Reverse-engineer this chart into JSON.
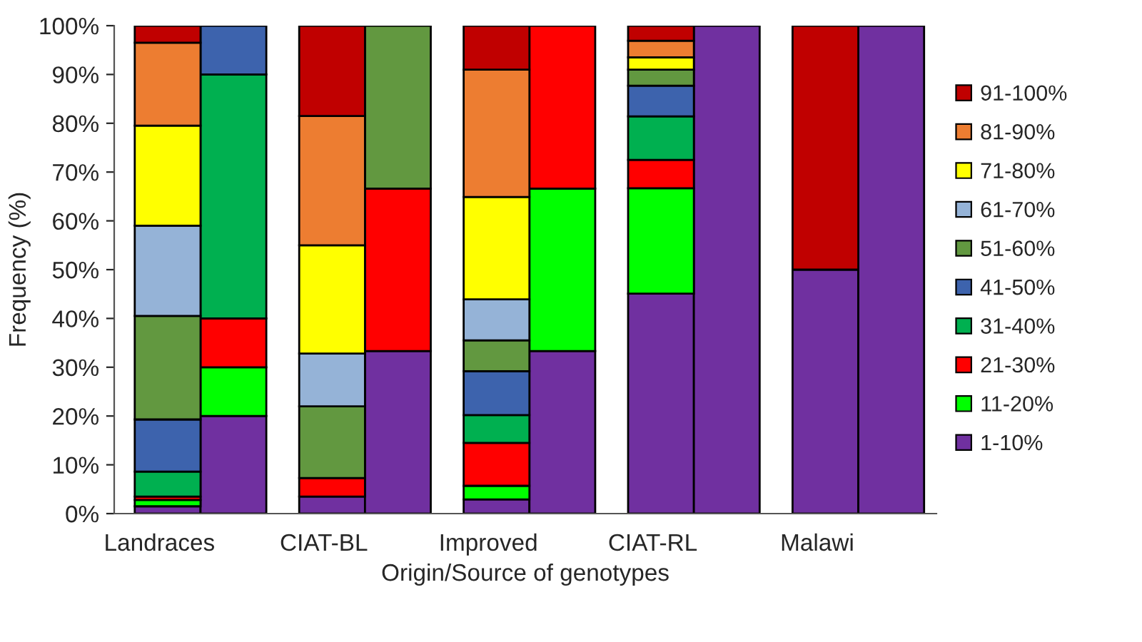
{
  "chart_data": {
    "type": "bar",
    "stacked": true,
    "xlabel": "Origin/Source of genotypes",
    "ylabel": "Frequency (%)",
    "categories": [
      "Landraces",
      null,
      "CIAT-BL",
      null,
      "Improved",
      null,
      "CIAT-RL",
      null,
      "Malawi",
      null
    ],
    "series": [
      {
        "name": "1-10%",
        "color": "#7030a0",
        "values": [
          1.5,
          20,
          3.5,
          33.3,
          2.9,
          33.3,
          45.1,
          100,
          50,
          100
        ]
      },
      {
        "name": "11-20%",
        "color": "#00ff00",
        "values": [
          1.3,
          10,
          null,
          null,
          2.8,
          33.3,
          21.6,
          null,
          null,
          null
        ]
      },
      {
        "name": "21-30%",
        "color": "#ff0000",
        "values": [
          0.7,
          10,
          3.8,
          33.3,
          8.8,
          33.4,
          5.8,
          null,
          null,
          null
        ]
      },
      {
        "name": "31-40%",
        "color": "#00b050",
        "values": [
          5.1,
          50,
          null,
          null,
          5.7,
          null,
          8.9,
          null,
          null,
          null
        ]
      },
      {
        "name": "41-50%",
        "color": "#3d63ad",
        "values": [
          10.7,
          10,
          null,
          null,
          9,
          null,
          6.3,
          null,
          null,
          null
        ]
      },
      {
        "name": "51-60%",
        "color": "#629840",
        "values": [
          21.2,
          null,
          14.7,
          33.4,
          6.3,
          null,
          3.3,
          null,
          null,
          null
        ]
      },
      {
        "name": "61-70%",
        "color": "#95b3d7",
        "values": [
          18.5,
          null,
          10.8,
          null,
          8.4,
          null,
          null,
          null,
          null,
          null
        ]
      },
      {
        "name": "71-80%",
        "color": "#ffff00",
        "values": [
          20.5,
          null,
          22.2,
          null,
          21,
          null,
          2.5,
          null,
          null,
          null
        ]
      },
      {
        "name": "81-90%",
        "color": "#ed7d31",
        "values": [
          17,
          null,
          26.5,
          null,
          26.1,
          null,
          3.4,
          null,
          null,
          null
        ]
      },
      {
        "name": "91-100%",
        "color": "#c00000",
        "values": [
          3.5,
          null,
          18.5,
          null,
          9,
          null,
          3.1,
          null,
          50,
          null
        ]
      }
    ],
    "ylim": [
      0,
      100
    ],
    "yticks": [
      {
        "value": 0,
        "label": "0%"
      },
      {
        "value": 10,
        "label": "10%"
      },
      {
        "value": 20,
        "label": "20%"
      },
      {
        "value": 30,
        "label": "30%"
      },
      {
        "value": 40,
        "label": "40%"
      },
      {
        "value": 50,
        "label": "50%"
      },
      {
        "value": 60,
        "label": "60%"
      },
      {
        "value": 70,
        "label": "70%"
      },
      {
        "value": 80,
        "label": "80%"
      },
      {
        "value": 90,
        "label": "90%"
      },
      {
        "value": 100,
        "label": "100%"
      }
    ],
    "legend": "right",
    "grid": false
  }
}
